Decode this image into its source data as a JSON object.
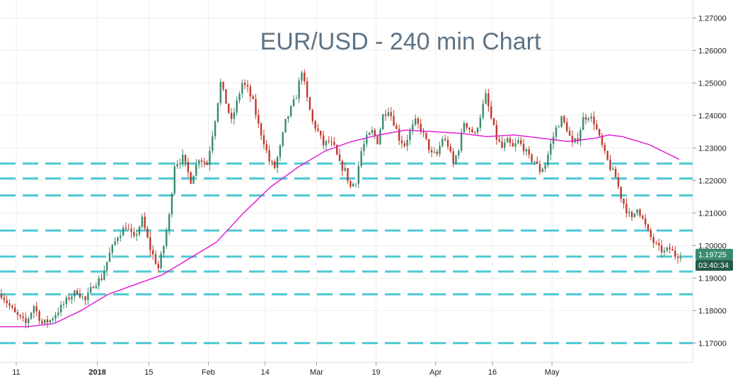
{
  "chart_data": {
    "type": "candlestick",
    "title": "EUR/USD - 240 min Chart",
    "y_ticks": [
      "1.17000",
      "1.18000",
      "1.19000",
      "1.20000",
      "1.21000",
      "1.22000",
      "1.23000",
      "1.24000",
      "1.25000",
      "1.26000",
      "1.27000"
    ],
    "ylim": [
      1.1642,
      1.2755
    ],
    "x_ticks": [
      "11",
      "2018",
      "15",
      "Feb",
      "14",
      "Mar",
      "19",
      "Apr",
      "16",
      "May"
    ],
    "x_tick_bold": [
      false,
      true,
      false,
      false,
      false,
      false,
      false,
      false,
      false,
      false
    ],
    "horizontal_levels": [
      1.17,
      1.185,
      1.192,
      1.1966,
      1.2046,
      1.2154,
      1.2206,
      1.2252
    ],
    "price_label": "1.19725",
    "countdown_label": "03:40:34",
    "close_price": 1.19725,
    "price_path": [
      [
        0,
        1.185
      ],
      [
        5,
        1.179
      ],
      [
        9,
        1.176
      ],
      [
        12,
        1.1815
      ],
      [
        15,
        1.176
      ],
      [
        18,
        1.177
      ],
      [
        21,
        1.18
      ],
      [
        25,
        1.184
      ],
      [
        28,
        1.186
      ],
      [
        31,
        1.183
      ],
      [
        34,
        1.188
      ],
      [
        37,
        1.19
      ],
      [
        40,
        1.1975
      ],
      [
        43,
        1.203
      ],
      [
        46,
        1.206
      ],
      [
        49,
        1.202
      ],
      [
        52,
        1.208
      ],
      [
        55,
        1.199
      ],
      [
        58,
        1.193
      ],
      [
        60,
        1.2
      ],
      [
        62,
        1.209
      ],
      [
        64,
        1.225
      ],
      [
        67,
        1.227
      ],
      [
        70,
        1.22
      ],
      [
        73,
        1.227
      ],
      [
        76,
        1.225
      ],
      [
        79,
        1.239
      ],
      [
        81,
        1.25
      ],
      [
        83,
        1.244
      ],
      [
        85,
        1.238
      ],
      [
        87,
        1.244
      ],
      [
        89,
        1.25
      ],
      [
        91,
        1.248
      ],
      [
        93,
        1.244
      ],
      [
        95,
        1.237
      ],
      [
        97,
        1.232
      ],
      [
        99,
        1.226
      ],
      [
        101,
        1.224
      ],
      [
        103,
        1.23
      ],
      [
        105,
        1.238
      ],
      [
        107,
        1.242
      ],
      [
        109,
        1.246
      ],
      [
        111,
        1.254
      ],
      [
        113,
        1.245
      ],
      [
        115,
        1.238
      ],
      [
        117,
        1.235
      ],
      [
        119,
        1.231
      ],
      [
        121,
        1.232
      ],
      [
        123,
        1.23
      ],
      [
        125,
        1.225
      ],
      [
        127,
        1.223
      ],
      [
        129,
        1.218
      ],
      [
        131,
        1.22
      ],
      [
        133,
        1.229
      ],
      [
        135,
        1.233
      ],
      [
        137,
        1.235
      ],
      [
        139,
        1.232
      ],
      [
        141,
        1.24
      ],
      [
        143,
        1.242
      ],
      [
        145,
        1.238
      ],
      [
        147,
        1.233
      ],
      [
        149,
        1.231
      ],
      [
        151,
        1.235
      ],
      [
        153,
        1.238
      ],
      [
        155,
        1.236
      ],
      [
        157,
        1.232
      ],
      [
        159,
        1.228
      ],
      [
        161,
        1.228
      ],
      [
        163,
        1.233
      ],
      [
        165,
        1.231
      ],
      [
        167,
        1.225
      ],
      [
        169,
        1.23
      ],
      [
        171,
        1.238
      ],
      [
        173,
        1.236
      ],
      [
        175,
        1.234
      ],
      [
        177,
        1.24
      ],
      [
        179,
        1.246
      ],
      [
        181,
        1.239
      ],
      [
        183,
        1.233
      ],
      [
        185,
        1.23
      ],
      [
        187,
        1.232
      ],
      [
        189,
        1.23
      ],
      [
        191,
        1.232
      ],
      [
        193,
        1.23
      ],
      [
        195,
        1.227
      ],
      [
        197,
        1.226
      ],
      [
        199,
        1.223
      ],
      [
        201,
        1.225
      ],
      [
        203,
        1.231
      ],
      [
        205,
        1.236
      ],
      [
        207,
        1.239
      ],
      [
        209,
        1.236
      ],
      [
        211,
        1.231
      ],
      [
        213,
        1.233
      ],
      [
        215,
        1.239
      ],
      [
        217,
        1.24
      ],
      [
        219,
        1.238
      ],
      [
        221,
        1.233
      ],
      [
        223,
        1.228
      ],
      [
        225,
        1.224
      ],
      [
        227,
        1.221
      ],
      [
        229,
        1.215
      ],
      [
        231,
        1.211
      ],
      [
        233,
        1.208
      ],
      [
        235,
        1.212
      ],
      [
        237,
        1.208
      ],
      [
        239,
        1.204
      ],
      [
        241,
        1.201
      ],
      [
        243,
        1.199
      ],
      [
        245,
        1.198
      ],
      [
        247,
        1.199
      ],
      [
        249,
        1.197
      ],
      [
        251,
        1.1973
      ]
    ],
    "ma_path": [
      [
        0,
        1.175
      ],
      [
        10,
        1.175
      ],
      [
        20,
        1.176
      ],
      [
        30,
        1.18
      ],
      [
        40,
        1.185
      ],
      [
        50,
        1.188
      ],
      [
        60,
        1.191
      ],
      [
        70,
        1.196
      ],
      [
        80,
        1.201
      ],
      [
        90,
        1.21
      ],
      [
        100,
        1.218
      ],
      [
        110,
        1.224
      ],
      [
        120,
        1.229
      ],
      [
        130,
        1.232
      ],
      [
        140,
        1.234
      ],
      [
        150,
        1.2355
      ],
      [
        160,
        1.235
      ],
      [
        170,
        1.2345
      ],
      [
        180,
        1.2335
      ],
      [
        190,
        1.234
      ],
      [
        200,
        1.233
      ],
      [
        210,
        1.232
      ],
      [
        220,
        1.233
      ],
      [
        225,
        1.234
      ],
      [
        230,
        1.2335
      ],
      [
        240,
        1.231
      ],
      [
        251,
        1.2265
      ]
    ],
    "x_tick_positions": [
      6,
      36,
      55,
      77,
      98,
      117,
      139,
      161,
      182,
      204
    ],
    "x_domain": [
      0,
      256
    ],
    "colors": {
      "level": "#4ec9d3",
      "ma": "#e024d6",
      "up": "#3a8a6d",
      "down": "#c0392b",
      "grid": "#eeeeee",
      "title": "#5d7385",
      "badge": "#3a8a6d",
      "badge2": "#245a46"
    },
    "grid": true
  }
}
